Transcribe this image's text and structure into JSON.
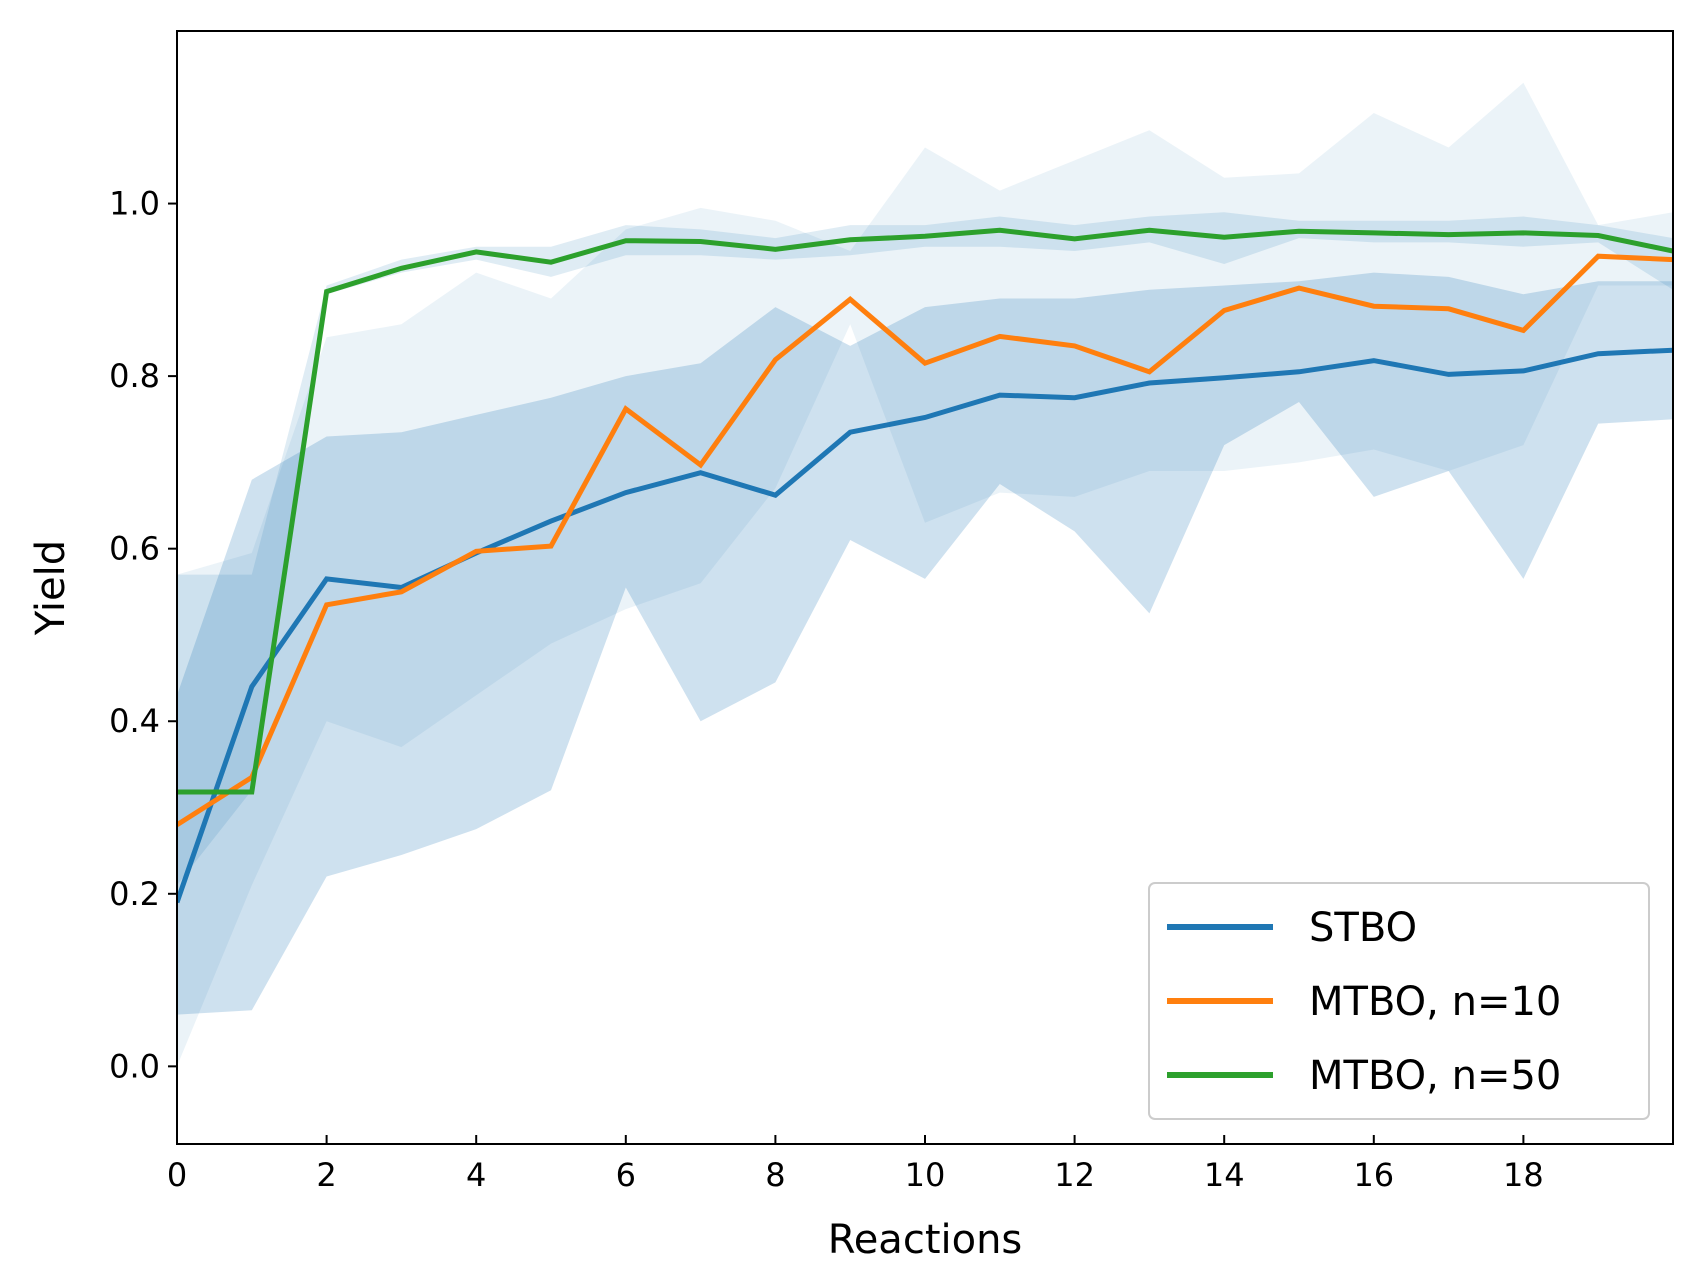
{
  "chart_data": {
    "type": "line",
    "xlabel": "Reactions",
    "ylabel": "Yield",
    "xlim": [
      0,
      20
    ],
    "ylim": [
      -0.09,
      1.2
    ],
    "xticks": [
      "0",
      "2",
      "4",
      "6",
      "8",
      "10",
      "12",
      "14",
      "16",
      "18"
    ],
    "yticks": [
      "0.0",
      "0.2",
      "0.4",
      "0.6",
      "0.8",
      "1.0"
    ],
    "grid": false,
    "legend_position": "lower-right",
    "x": [
      0,
      1,
      2,
      3,
      4,
      5,
      6,
      7,
      8,
      9,
      10,
      11,
      12,
      13,
      14,
      15,
      16,
      17,
      18,
      19,
      20
    ],
    "series": [
      {
        "name": "STBO",
        "color": "#1f77b4",
        "values": [
          0.19,
          0.44,
          0.565,
          0.555,
          0.595,
          0.632,
          0.665,
          0.688,
          0.662,
          0.735,
          0.752,
          0.778,
          0.775,
          0.792,
          0.798,
          0.805,
          0.818,
          0.802,
          0.806,
          0.826,
          0.83
        ],
        "band_low": [
          0.06,
          0.065,
          0.22,
          0.245,
          0.275,
          0.32,
          0.555,
          0.4,
          0.445,
          0.61,
          0.565,
          0.675,
          0.62,
          0.525,
          0.72,
          0.77,
          0.66,
          0.69,
          0.565,
          0.745,
          0.75
        ],
        "band_high": [
          0.43,
          0.68,
          0.73,
          0.735,
          0.755,
          0.775,
          0.8,
          0.815,
          0.88,
          0.835,
          0.88,
          0.89,
          0.89,
          0.9,
          0.905,
          0.91,
          0.92,
          0.915,
          0.895,
          0.91,
          0.91
        ]
      },
      {
        "name": "MTBO, n=10",
        "color": "#ff7f0e",
        "values": [
          0.28,
          0.335,
          0.535,
          0.55,
          0.597,
          0.603,
          0.762,
          0.697,
          0.819,
          0.889,
          0.815,
          0.846,
          0.835,
          0.805,
          0.876,
          0.902,
          0.881,
          0.878,
          0.853,
          0.939,
          0.935
        ],
        "band_low": [
          0.0,
          0.21,
          0.4,
          0.37,
          0.43,
          0.49,
          0.53,
          0.56,
          0.67,
          0.86,
          0.63,
          0.665,
          0.66,
          0.69,
          0.69,
          0.7,
          0.715,
          0.69,
          0.72,
          0.905,
          0.905
        ],
        "band_high": [
          0.57,
          0.595,
          0.845,
          0.86,
          0.92,
          0.89,
          0.97,
          0.995,
          0.98,
          0.945,
          1.065,
          1.015,
          1.05,
          1.085,
          1.03,
          1.035,
          1.105,
          1.065,
          1.14,
          0.975,
          0.99
        ]
      },
      {
        "name": "MTBO, n=50",
        "color": "#2ca02c",
        "values": [
          0.318,
          0.318,
          0.898,
          0.925,
          0.944,
          0.932,
          0.957,
          0.956,
          0.947,
          0.958,
          0.962,
          0.969,
          0.959,
          0.969,
          0.961,
          0.968,
          0.966,
          0.964,
          0.966,
          0.963,
          0.945
        ],
        "band_low": [
          0.21,
          0.32,
          0.895,
          0.92,
          0.935,
          0.915,
          0.94,
          0.94,
          0.935,
          0.94,
          0.95,
          0.95,
          0.945,
          0.955,
          0.93,
          0.96,
          0.955,
          0.955,
          0.95,
          0.955,
          0.9
        ],
        "band_high": [
          0.57,
          0.57,
          0.905,
          0.935,
          0.95,
          0.95,
          0.975,
          0.97,
          0.96,
          0.975,
          0.975,
          0.985,
          0.975,
          0.985,
          0.99,
          0.98,
          0.98,
          0.98,
          0.985,
          0.975,
          0.96
        ]
      }
    ]
  }
}
